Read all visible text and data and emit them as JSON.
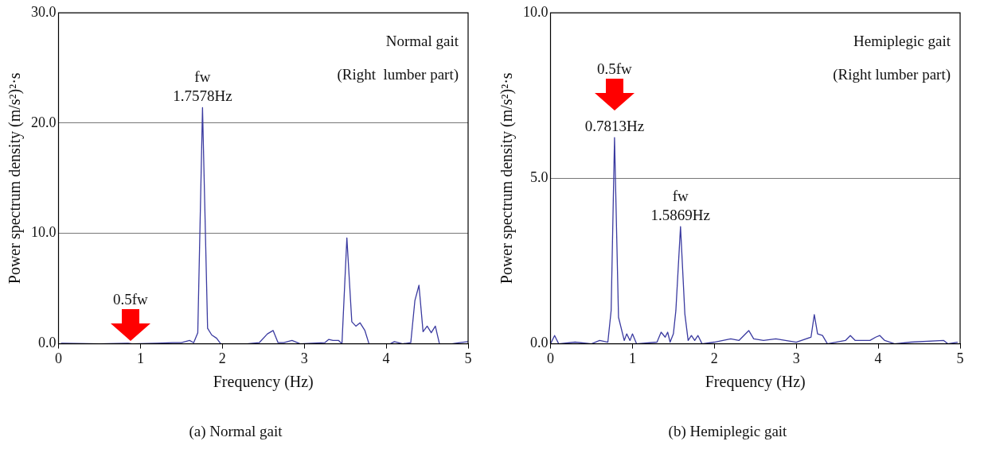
{
  "chart_data": [
    {
      "type": "line",
      "title": "(a) Normal gait",
      "xlabel": "Frequency (Hz)",
      "ylabel": "Power spectrum density (m/s²)²·s",
      "xlim": [
        0,
        5
      ],
      "xticks": [
        0,
        1,
        2,
        3,
        4,
        5
      ],
      "ylim": [
        0,
        30
      ],
      "yticks": [
        {
          "value": 0,
          "label": "0.0"
        },
        {
          "value": 10,
          "label": "10.0"
        },
        {
          "value": 20,
          "label": "20.0"
        },
        {
          "value": 30,
          "label": "30.0"
        }
      ],
      "grid": "y",
      "marker": "none",
      "line_style": "solid",
      "annotations": [
        "Normal gait",
        "(Right  lumber part)",
        {
          "text": "fw\n1.7578Hz",
          "x": 1.7578,
          "y": 21.4
        },
        {
          "text": "0.5fw",
          "x": 0.8789,
          "y": 0
        }
      ],
      "series": [
        {
          "color": "#3a3aa0",
          "x": [
            0.03,
            0.5,
            0.85,
            0.9,
            1.2,
            1.4,
            1.5,
            1.6,
            1.65,
            1.7,
            1.7578,
            1.82,
            1.87,
            1.93,
            1.98,
            2.3,
            2.45,
            2.55,
            2.62,
            2.68,
            2.75,
            2.85,
            2.95,
            3.1,
            3.25,
            3.3,
            3.35,
            3.42,
            3.46,
            3.52,
            3.58,
            3.63,
            3.68,
            3.74,
            3.79,
            4.05,
            4.1,
            4.2,
            4.3,
            4.35,
            4.4,
            4.45,
            4.5,
            4.55,
            4.6,
            4.65,
            4.8,
            4.9,
            5
          ],
          "values": [
            0.05,
            0,
            0.05,
            0,
            0.05,
            0.1,
            0.1,
            0.3,
            0.1,
            1.0,
            21.4,
            1.4,
            0.8,
            0.5,
            0,
            0,
            0.1,
            0.9,
            1.2,
            0.1,
            0.1,
            0.3,
            0,
            0.05,
            0.1,
            0.4,
            0.3,
            0.3,
            0,
            9.6,
            2.0,
            1.6,
            1.9,
            1.2,
            0,
            0,
            0.2,
            0,
            0.1,
            3.9,
            5.3,
            1.1,
            1.6,
            1.0,
            1.6,
            0,
            0,
            0.1,
            0.2
          ]
        }
      ]
    },
    {
      "type": "line",
      "title": "(b) Hemiplegic gait",
      "xlabel": "Frequency (Hz)",
      "ylabel": "Power spectrum density (m/s²)²·s",
      "xlim": [
        0,
        5
      ],
      "xticks": [
        0,
        1,
        2,
        3,
        4,
        5
      ],
      "ylim": [
        0,
        10
      ],
      "yticks": [
        {
          "value": 0,
          "label": "0.0"
        },
        {
          "value": 5,
          "label": "5.0"
        },
        {
          "value": 10,
          "label": "10.0"
        }
      ],
      "grid": "y",
      "marker": "none",
      "line_style": "solid",
      "annotations": [
        "Hemiplegic gait",
        "(Right lumber part)",
        "0.5fw",
        {
          "text": "0.7813Hz",
          "x": 0.7813,
          "y": 6.23
        },
        {
          "text": "fw\n1.5869Hz",
          "x": 1.5869,
          "y": 3.54
        }
      ],
      "series": [
        {
          "color": "#3a3aa0",
          "x": [
            0,
            0.05,
            0.1,
            0.3,
            0.5,
            0.6,
            0.7,
            0.74,
            0.7813,
            0.83,
            0.9,
            0.93,
            0.97,
            1.0,
            1.05,
            1.3,
            1.35,
            1.4,
            1.43,
            1.46,
            1.5,
            1.53,
            1.5869,
            1.64,
            1.68,
            1.72,
            1.76,
            1.8,
            1.85,
            2.0,
            2.2,
            2.3,
            2.42,
            2.48,
            2.6,
            2.75,
            3.0,
            3.18,
            3.22,
            3.26,
            3.32,
            3.38,
            3.6,
            3.66,
            3.72,
            3.9,
            3.97,
            4.02,
            4.08,
            4.2,
            4.4,
            4.8,
            4.85,
            4.97
          ],
          "values": [
            0,
            0.25,
            0,
            0.05,
            0,
            0.1,
            0.05,
            1.0,
            6.23,
            0.8,
            0.1,
            0.3,
            0.1,
            0.3,
            0,
            0.05,
            0.35,
            0.2,
            0.35,
            0.05,
            0.3,
            1.0,
            3.54,
            0.9,
            0.1,
            0.25,
            0.1,
            0.25,
            0,
            0.05,
            0.15,
            0.1,
            0.4,
            0.15,
            0.1,
            0.15,
            0.05,
            0.2,
            0.88,
            0.3,
            0.25,
            0,
            0.1,
            0.25,
            0.1,
            0.1,
            0.2,
            0.25,
            0.1,
            0,
            0.05,
            0.1,
            0,
            0.05
          ]
        }
      ]
    }
  ]
}
